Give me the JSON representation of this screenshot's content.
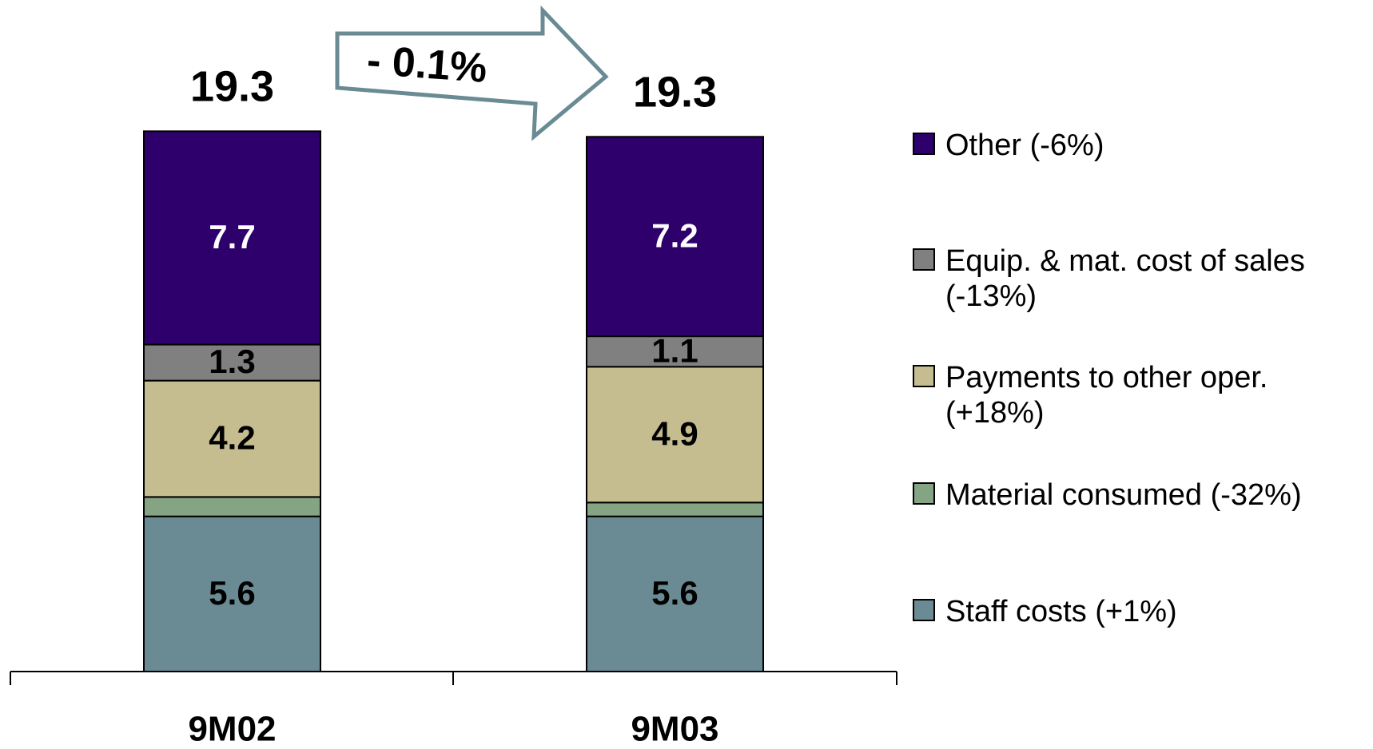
{
  "chart_data": {
    "type": "bar",
    "stacked": true,
    "categories": [
      "9M02",
      "9M03"
    ],
    "series": [
      {
        "name": "Staff costs (+1%)",
        "color": "#6a8a94",
        "values": [
          5.6,
          5.6
        ],
        "label_color": "#000000",
        "show_labels": true
      },
      {
        "name": "Material consumed (-32%)",
        "color": "#84a484",
        "values": [
          0.7,
          0.5
        ],
        "show_labels": false
      },
      {
        "name": "Payments to other oper. (+18%)",
        "color": "#c5bd8f",
        "values": [
          4.2,
          4.9
        ],
        "label_color": "#000000",
        "show_labels": true
      },
      {
        "name": "Equip. & mat. cost of sales (-13%)",
        "color": "#808080",
        "values": [
          1.3,
          1.1
        ],
        "label_color": "#000000",
        "show_labels": true
      },
      {
        "name": "Other (-6%)",
        "color": "#2e006c",
        "values": [
          7.7,
          7.2
        ],
        "label_color": "#ffffff",
        "show_labels": true
      }
    ],
    "totals": [
      19.3,
      19.3
    ],
    "annotation": "- 0.1%",
    "legend": "right"
  }
}
